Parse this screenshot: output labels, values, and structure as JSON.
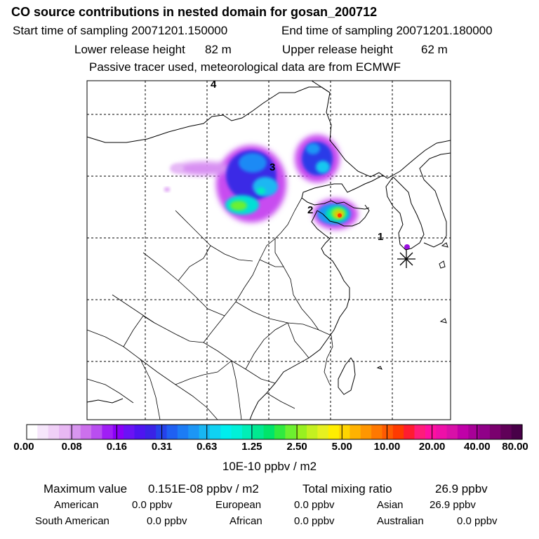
{
  "header": {
    "title": "CO  source contributions in nested domain for gosan_200712",
    "start_label": "Start time of sampling 20071201.150000",
    "end_label": "End time of sampling 20071201.180000",
    "lower_label": "Lower release height",
    "lower_value": "82 m",
    "upper_label": "Upper release height",
    "upper_value": "62 m",
    "tracer_note": "Passive tracer used, meteorological data are from ECMWF"
  },
  "map": {
    "point_labels": [
      {
        "text": "4"
      },
      {
        "text": "3"
      },
      {
        "text": "2"
      },
      {
        "text": "1"
      }
    ],
    "receptor_marker": "asterisk-star-icon"
  },
  "colorbar": {
    "colors": [
      "#ffffff",
      "#f6e6fb",
      "#f0d0f7",
      "#e8b8f3",
      "#d896ef",
      "#cc70ec",
      "#b94ef0",
      "#a01ef5",
      "#8a00f7",
      "#6a12f5",
      "#4e14f0",
      "#3a22e6",
      "#2542ea",
      "#1f60f2",
      "#1c7cf5",
      "#1c96f5",
      "#18b6f2",
      "#10d2f2",
      "#00eeee",
      "#00f0d8",
      "#00eeb6",
      "#00e890",
      "#00e46a",
      "#30ea40",
      "#6cf030",
      "#98f020",
      "#c4f020",
      "#e6f020",
      "#ffee00",
      "#ffd400",
      "#ffb200",
      "#ff9600",
      "#ff7800",
      "#ff5a00",
      "#ff3a00",
      "#ff1c30",
      "#ff1c7a",
      "#ff10a0",
      "#ee10a8",
      "#d810a8",
      "#c000a8",
      "#a80098",
      "#900088",
      "#7a006e",
      "#600058",
      "#480048"
    ],
    "tick_labels": [
      "0.00",
      "0.08",
      "0.16",
      "0.31",
      "0.63",
      "1.25",
      "2.50",
      "5.00",
      "10.00",
      "20.00",
      "40.00",
      "80.00"
    ],
    "unit": "10E-10 ppbv / m2"
  },
  "summary": {
    "max_label": "Maximum value",
    "max_value": "0.151E-08 ppbv / m2",
    "total_label": "Total mixing ratio",
    "total_value": "26.9 ppbv",
    "regions": [
      {
        "name": "American",
        "value": "0.0 ppbv"
      },
      {
        "name": "European",
        "value": "0.0 ppbv"
      },
      {
        "name": "Asian",
        "value": "26.9 ppbv"
      },
      {
        "name": "South American",
        "value": "0.0 ppbv"
      },
      {
        "name": "African",
        "value": "0.0 ppbv"
      },
      {
        "name": "Australian",
        "value": "0.0 ppbv"
      }
    ]
  }
}
